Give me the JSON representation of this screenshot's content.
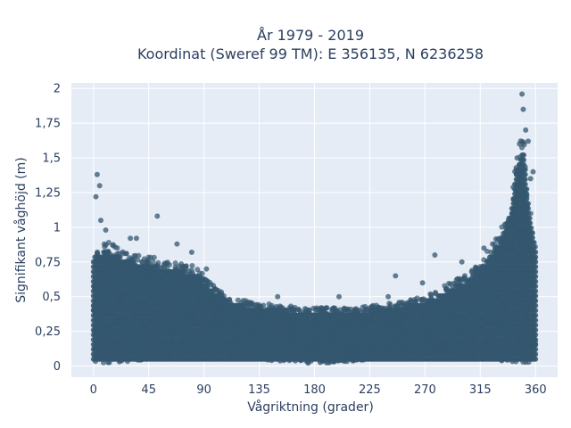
{
  "chart_data": {
    "type": "scatter",
    "title_line1": "År 1979 - 2019",
    "title_line2": "Koordinat (Sweref 99 TM): E 356135, N 6236258",
    "xlabel": "Vågriktning (grader)",
    "ylabel": "Signifikant våghöjd (m)",
    "xlim": [
      -18,
      378
    ],
    "ylim": [
      -0.08,
      2.04
    ],
    "x_ticks": [
      0,
      45,
      90,
      135,
      180,
      225,
      270,
      315,
      360
    ],
    "x_tick_labels": [
      "0",
      "45",
      "90",
      "135",
      "180",
      "225",
      "270",
      "315",
      "360"
    ],
    "y_ticks": [
      0,
      0.25,
      0.5,
      0.75,
      1,
      1.25,
      1.5,
      1.75,
      2
    ],
    "y_tick_labels": [
      "0",
      "0,25",
      "0,5",
      "0,75",
      "1",
      "1,25",
      "1,5",
      "1,75",
      "2"
    ],
    "grid": true,
    "marker_color": "#34576f",
    "plot_bg": "#e5ecf6",
    "upper_envelope": {
      "x": [
        0,
        10,
        20,
        30,
        45,
        60,
        75,
        85,
        95,
        110,
        130,
        150,
        180,
        210,
        240,
        270,
        290,
        310,
        320,
        330,
        340,
        345,
        350,
        355,
        360
      ],
      "y": [
        0.85,
        0.9,
        0.86,
        0.82,
        0.8,
        0.75,
        0.74,
        0.72,
        0.6,
        0.5,
        0.46,
        0.44,
        0.42,
        0.42,
        0.45,
        0.5,
        0.6,
        0.7,
        0.82,
        0.95,
        1.2,
        1.55,
        1.7,
        1.2,
        0.9
      ]
    },
    "outliers": {
      "x": [
        2,
        3,
        5,
        6,
        52,
        30,
        35,
        10,
        68,
        80,
        92,
        150,
        200,
        240,
        246,
        268,
        278,
        300,
        308,
        318,
        325,
        333,
        338,
        342,
        345,
        347,
        349,
        350,
        352,
        354,
        356,
        358
      ],
      "y": [
        1.22,
        1.38,
        1.3,
        1.05,
        1.08,
        0.92,
        0.92,
        0.98,
        0.88,
        0.82,
        0.7,
        0.5,
        0.5,
        0.5,
        0.65,
        0.6,
        0.8,
        0.75,
        0.68,
        0.85,
        0.88,
        0.9,
        1.05,
        1.2,
        1.5,
        1.6,
        1.96,
        1.85,
        1.7,
        1.62,
        1.35,
        1.4
      ]
    }
  }
}
